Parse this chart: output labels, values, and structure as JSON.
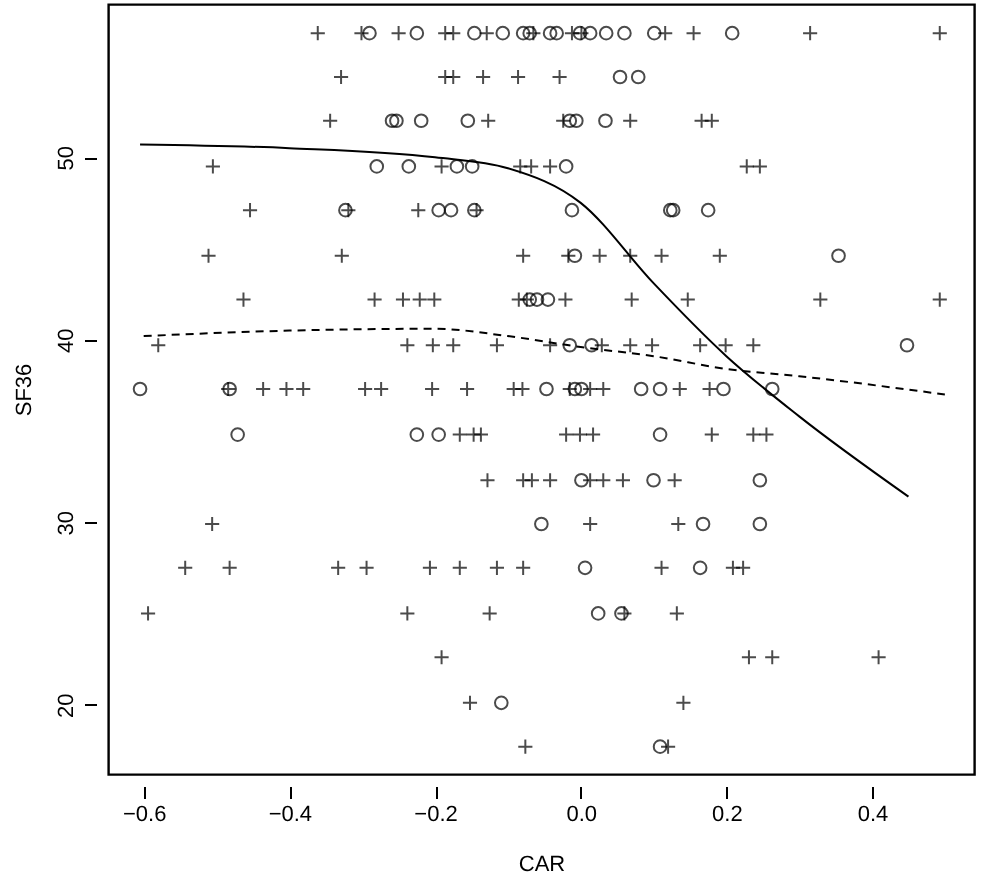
{
  "chart_data": {
    "type": "scatter",
    "xlabel": "CAR",
    "ylabel": "SF36",
    "xlim": [
      -0.649,
      0.54
    ],
    "ylim": [
      16.2,
      58.4
    ],
    "xticks": [
      -0.6,
      -0.4,
      -0.2,
      {
        "value": 0,
        "label": "0.0"
      },
      0.2,
      0.4
    ],
    "yticks": [
      20,
      30,
      40,
      50
    ],
    "grid": false,
    "series": [
      {
        "color": "#000000",
        "marker": "cross",
        "x": [
          -0.361,
          -0.301,
          -0.25,
          -0.186,
          -0.175,
          -0.129,
          -0.065,
          -0.012,
          0.001,
          0.116,
          0.155,
          0.315,
          0.493,
          -0.329,
          -0.186,
          -0.175,
          -0.134,
          -0.086,
          -0.029,
          -0.344,
          -0.127,
          -0.024,
          0.068,
          0.166,
          0.18,
          -0.505,
          -0.191,
          -0.083,
          -0.068,
          -0.042,
          0.228,
          0.246,
          -0.454,
          -0.319,
          -0.223,
          -0.143,
          -0.511,
          -0.328,
          -0.079,
          -0.017,
          0.026,
          0.068,
          0.111,
          0.191,
          -0.463,
          -0.283,
          -0.244,
          -0.221,
          -0.201,
          -0.085,
          -0.074,
          -0.021,
          0.07,
          0.147,
          0.329,
          0.493,
          -0.58,
          -0.238,
          -0.203,
          -0.175,
          -0.115,
          -0.042,
          0.029,
          0.068,
          0.098,
          0.164,
          0.199,
          0.237,
          -0.484,
          -0.436,
          -0.404,
          -0.381,
          -0.296,
          -0.274,
          -0.204,
          -0.156,
          -0.092,
          -0.08,
          -0.015,
          0.013,
          0.031,
          0.136,
          0.177,
          -0.166,
          -0.147,
          -0.137,
          -0.02,
          -0.001,
          0.017,
          0.18,
          0.237,
          0.255,
          -0.128,
          -0.079,
          -0.067,
          -0.042,
          0.013,
          0.031,
          0.058,
          0.129,
          -0.506,
          0.013,
          0.134,
          -0.543,
          -0.482,
          -0.333,
          -0.294,
          -0.207,
          -0.166,
          -0.115,
          -0.079,
          0.111,
          0.209,
          0.223,
          -0.594,
          -0.238,
          -0.125,
          0.06,
          0.132,
          -0.191,
          0.231,
          0.263,
          0.409,
          -0.152,
          0.141,
          -0.076,
          0.12
        ],
        "values": [
          56.8,
          56.8,
          56.8,
          56.8,
          56.8,
          56.8,
          56.8,
          56.8,
          56.8,
          56.8,
          56.8,
          56.8,
          56.8,
          54.4,
          54.4,
          54.4,
          54.4,
          54.4,
          54.4,
          52.0,
          52.0,
          52.0,
          52.0,
          52.0,
          52.0,
          49.5,
          49.5,
          49.5,
          49.5,
          49.5,
          49.5,
          49.5,
          47.1,
          47.1,
          47.1,
          47.1,
          44.6,
          44.6,
          44.6,
          44.6,
          44.6,
          44.6,
          44.6,
          44.6,
          42.2,
          42.2,
          42.2,
          42.2,
          42.2,
          42.2,
          42.2,
          42.2,
          42.2,
          42.2,
          42.2,
          42.2,
          39.7,
          39.7,
          39.7,
          39.7,
          39.7,
          39.7,
          39.7,
          39.7,
          39.7,
          39.7,
          39.7,
          39.7,
          37.3,
          37.3,
          37.3,
          37.3,
          37.3,
          37.3,
          37.3,
          37.3,
          37.3,
          37.3,
          37.3,
          37.3,
          37.3,
          37.3,
          37.3,
          34.8,
          34.8,
          34.8,
          34.8,
          34.8,
          34.8,
          34.8,
          34.8,
          34.8,
          32.3,
          32.3,
          32.3,
          32.3,
          32.3,
          32.3,
          32.3,
          32.3,
          29.9,
          29.9,
          29.9,
          27.5,
          27.5,
          27.5,
          27.5,
          27.5,
          27.5,
          27.5,
          27.5,
          27.5,
          27.5,
          27.5,
          25.0,
          25.0,
          25.0,
          25.0,
          25.0,
          22.6,
          22.6,
          22.6,
          22.6,
          20.1,
          20.1,
          17.7,
          17.7
        ]
      },
      {
        "color": "#000000",
        "marker": "circle",
        "x": [
          -0.29,
          -0.225,
          -0.146,
          -0.107,
          -0.079,
          -0.07,
          -0.042,
          -0.033,
          -0.001,
          0.013,
          0.035,
          0.06,
          0.101,
          0.208,
          0.054,
          0.079,
          -0.259,
          -0.253,
          -0.219,
          -0.155,
          -0.015,
          -0.006,
          0.034,
          -0.28,
          -0.236,
          -0.17,
          -0.149,
          -0.02,
          -0.323,
          -0.195,
          -0.178,
          -0.146,
          -0.012,
          0.123,
          0.127,
          0.175,
          -0.008,
          0.354,
          -0.07,
          -0.06,
          -0.045,
          -0.015,
          0.015,
          0.448,
          -0.605,
          -0.482,
          -0.047,
          -0.008,
          0.001,
          0.083,
          0.109,
          0.196,
          0.263,
          -0.471,
          -0.225,
          -0.195,
          0.109,
          0.001,
          0.1,
          0.246,
          -0.054,
          0.168,
          0.246,
          0.006,
          0.164,
          0.024,
          0.056,
          -0.109,
          0.109
        ],
        "values": [
          56.8,
          56.8,
          56.8,
          56.8,
          56.8,
          56.8,
          56.8,
          56.8,
          56.8,
          56.8,
          56.8,
          56.8,
          56.8,
          56.8,
          54.4,
          54.4,
          52.0,
          52.0,
          52.0,
          52.0,
          52.0,
          52.0,
          52.0,
          49.5,
          49.5,
          49.5,
          49.5,
          49.5,
          47.1,
          47.1,
          47.1,
          47.1,
          47.1,
          47.1,
          47.1,
          47.1,
          44.6,
          44.6,
          42.2,
          42.2,
          42.2,
          39.7,
          39.7,
          39.7,
          37.3,
          37.3,
          37.3,
          37.3,
          37.3,
          37.3,
          37.3,
          37.3,
          37.3,
          34.8,
          34.8,
          34.8,
          34.8,
          32.3,
          32.3,
          32.3,
          29.9,
          29.9,
          29.9,
          27.5,
          27.5,
          25.0,
          25.0,
          20.1,
          17.7
        ]
      },
      {
        "type": "line",
        "color": "#000000",
        "line_style": "solid",
        "marker": "none",
        "x": [
          -0.605,
          -0.4,
          -0.2,
          -0.1,
          0.0,
          0.1,
          0.2,
          0.3,
          0.45
        ],
        "values": [
          50.7,
          50.5,
          50.0,
          49.4,
          47.5,
          43.1,
          39.1,
          35.8,
          31.4
        ]
      },
      {
        "type": "line",
        "color": "#000000",
        "line_style": "dashed",
        "marker": "none",
        "x": [
          -0.6,
          -0.4,
          -0.2,
          -0.1,
          0.0,
          0.1,
          0.2,
          0.3,
          0.5
        ],
        "values": [
          40.2,
          40.5,
          40.6,
          40.2,
          39.6,
          39.1,
          38.4,
          38.0,
          37.0
        ]
      }
    ]
  }
}
